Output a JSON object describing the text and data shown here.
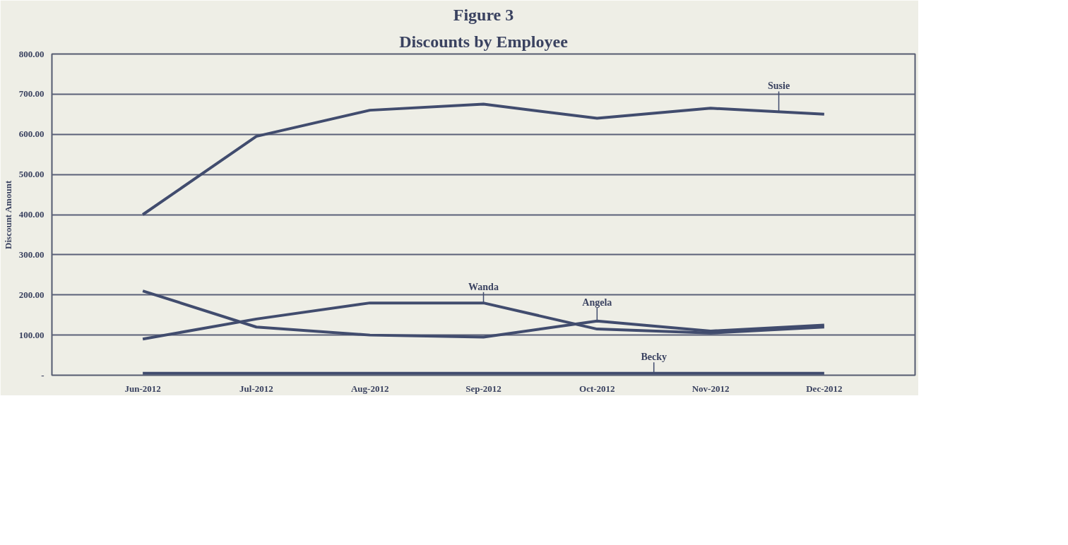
{
  "chart_data": {
    "type": "line",
    "title": "Figure 3",
    "subtitle": "Discounts by Employee",
    "ylabel": "Discount Amount",
    "categories": [
      "Jun-2012",
      "Jul-2012",
      "Aug-2012",
      "Sep-2012",
      "Oct-2012",
      "Nov-2012",
      "Dec-2012"
    ],
    "series": [
      {
        "name": "Susie",
        "color": "#414c6e",
        "values": [
          400,
          595,
          660,
          675,
          640,
          665,
          650
        ]
      },
      {
        "name": "Wanda",
        "color": "#414c6e",
        "values": [
          90,
          140,
          180,
          180,
          115,
          105,
          120
        ]
      },
      {
        "name": "Angela",
        "color": "#414c6e",
        "values": [
          210,
          120,
          100,
          95,
          135,
          110,
          125
        ]
      },
      {
        "name": "Becky",
        "color": "#414c6e",
        "values": [
          5,
          5,
          5,
          5,
          5,
          5,
          5
        ]
      }
    ],
    "ylim": [
      0,
      800
    ],
    "yticks": [
      {
        "value": 0,
        "label": "-"
      },
      {
        "value": 100,
        "label": "100.00"
      },
      {
        "value": 200,
        "label": "200.00"
      },
      {
        "value": 300,
        "label": "300.00"
      },
      {
        "value": 400,
        "label": "400.00"
      },
      {
        "value": 500,
        "label": "500.00"
      },
      {
        "value": 600,
        "label": "600.00"
      },
      {
        "value": 700,
        "label": "700.00"
      },
      {
        "value": 800,
        "label": "800.00"
      }
    ],
    "grid": "y",
    "marker": "none",
    "line_style": "solid"
  }
}
